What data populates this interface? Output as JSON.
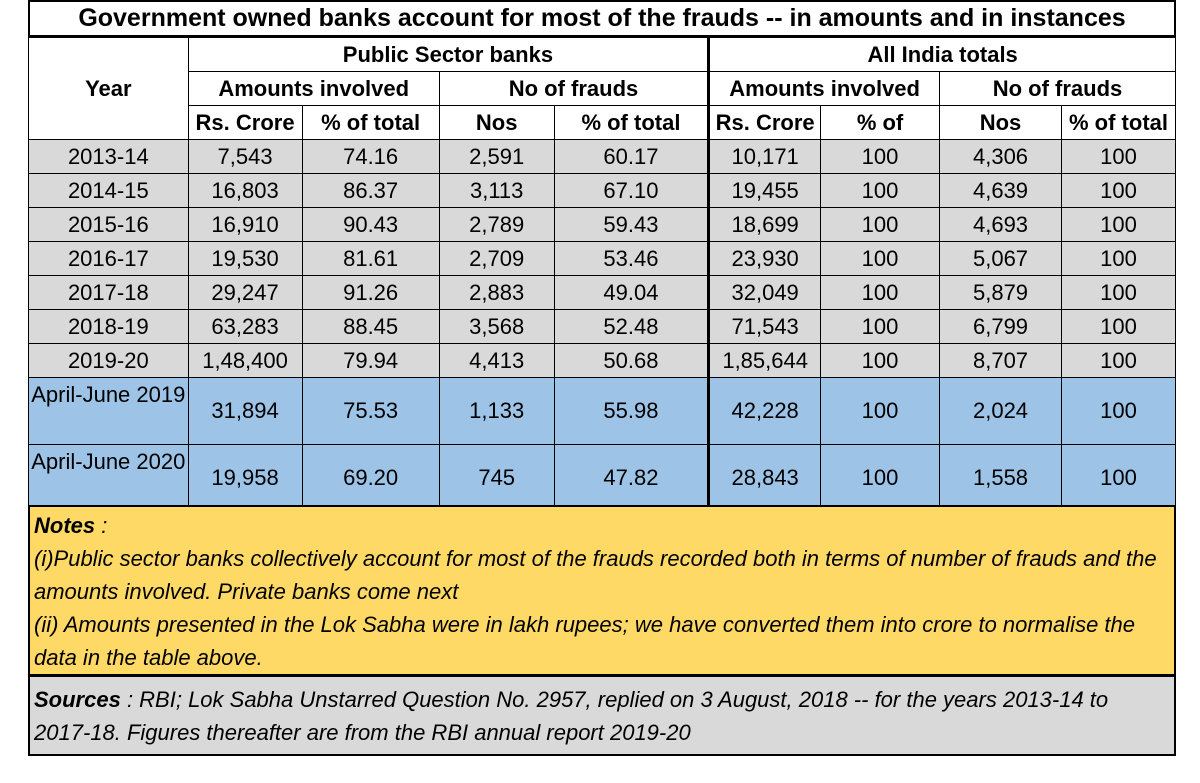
{
  "title": "Government owned banks account for most of the frauds -- in amounts and in instances",
  "header": {
    "year": "Year",
    "group_psb": "Public Sector banks",
    "group_all": "All India totals",
    "amounts_involved": "Amounts involved",
    "no_of_frauds": "No of frauds",
    "units": [
      "Rs. Crore",
      "% of total",
      "Nos",
      "% of total",
      "Rs. Crore",
      "% of",
      "Nos",
      "% of total"
    ]
  },
  "rows": [
    {
      "year": "2013-14",
      "psb_amt": "7,543",
      "psb_amt_pct": "74.16",
      "psb_nos": "2,591",
      "psb_nos_pct": "60.17",
      "all_amt": "10,171",
      "all_amt_pct": "100",
      "all_nos": "4,306",
      "all_nos_pct": "100"
    },
    {
      "year": "2014-15",
      "psb_amt": "16,803",
      "psb_amt_pct": "86.37",
      "psb_nos": "3,113",
      "psb_nos_pct": "67.10",
      "all_amt": "19,455",
      "all_amt_pct": "100",
      "all_nos": "4,639",
      "all_nos_pct": "100"
    },
    {
      "year": "2015-16",
      "psb_amt": "16,910",
      "psb_amt_pct": "90.43",
      "psb_nos": "2,789",
      "psb_nos_pct": "59.43",
      "all_amt": "18,699",
      "all_amt_pct": "100",
      "all_nos": "4,693",
      "all_nos_pct": "100"
    },
    {
      "year": "2016-17",
      "psb_amt": "19,530",
      "psb_amt_pct": "81.61",
      "psb_nos": "2,709",
      "psb_nos_pct": "53.46",
      "all_amt": "23,930",
      "all_amt_pct": "100",
      "all_nos": "5,067",
      "all_nos_pct": "100"
    },
    {
      "year": "2017-18",
      "psb_amt": "29,247",
      "psb_amt_pct": "91.26",
      "psb_nos": "2,883",
      "psb_nos_pct": "49.04",
      "all_amt": "32,049",
      "all_amt_pct": "100",
      "all_nos": "5,879",
      "all_nos_pct": "100"
    },
    {
      "year": "2018-19",
      "psb_amt": "63,283",
      "psb_amt_pct": "88.45",
      "psb_nos": "3,568",
      "psb_nos_pct": "52.48",
      "all_amt": "71,543",
      "all_amt_pct": "100",
      "all_nos": "6,799",
      "all_nos_pct": "100"
    },
    {
      "year": "2019-20",
      "psb_amt": "1,48,400",
      "psb_amt_pct": "79.94",
      "psb_nos": "4,413",
      "psb_nos_pct": "50.68",
      "all_amt": "1,85,644",
      "all_amt_pct": "100",
      "all_nos": "8,707",
      "all_nos_pct": "100"
    },
    {
      "year": "April-June 2019",
      "psb_amt": "31,894",
      "psb_amt_pct": "75.53",
      "psb_nos": "1,133",
      "psb_nos_pct": "55.98",
      "all_amt": "42,228",
      "all_amt_pct": "100",
      "all_nos": "2,024",
      "all_nos_pct": "100"
    },
    {
      "year": "April-June 2020",
      "psb_amt": "19,958",
      "psb_amt_pct": "69.20",
      "psb_nos": "745",
      "psb_nos_pct": "47.82",
      "all_amt": "28,843",
      "all_amt_pct": "100",
      "all_nos": "1,558",
      "all_nos_pct": "100"
    }
  ],
  "notes": {
    "heading": "Notes",
    "heading_suffix": " :",
    "line1": "(i)Public sector banks collectively account for most of the frauds recorded both in terms of number of frauds and the amounts involved.  Private banks come next",
    "line2": "(ii) Amounts presented in the Lok Sabha were in lakh rupees; we have converted them into crore to normalise the data in the table above."
  },
  "sources": {
    "heading": "Sources",
    "text": " : RBI; Lok Sabha Unstarred Question No. 2957, replied on 3 August, 2018 -- for the years  2013-14 to 2017-18.  Figures thereafter are from the RBI annual report 2019-20"
  },
  "colors": {
    "annual_row_bg": "#d9d9d9",
    "quarter_row_bg": "#9dc3e6",
    "notes_bg": "#ffd966",
    "sources_bg": "#d9d9d9"
  }
}
